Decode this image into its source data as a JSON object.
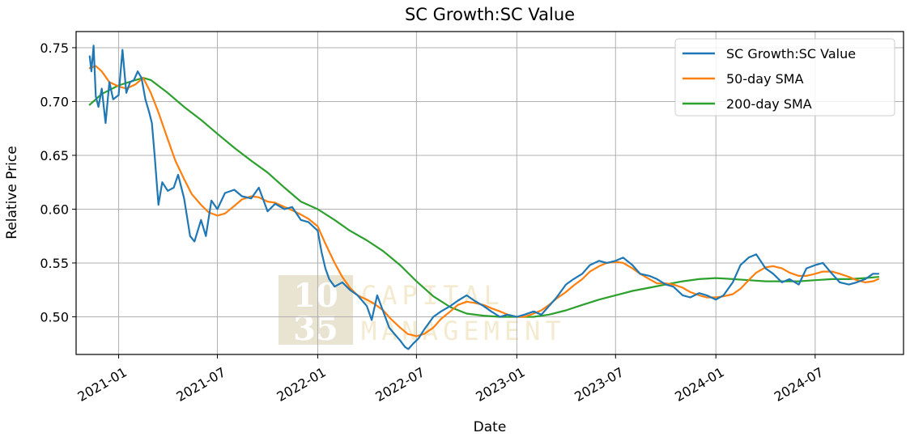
{
  "colors": {
    "price": "#1f77b4",
    "sma50": "#ff7f0e",
    "sma200": "#2ca02c",
    "grid": "#b0b0b0",
    "watermark_box": "#e9e3d2",
    "watermark_text": "#f3ead0"
  },
  "watermark": {
    "box_line1": "10",
    "box_line2": "35",
    "text_line1": "CAPITAL",
    "text_line2": "MANAGEMENT"
  },
  "chart_data": {
    "type": "line",
    "title": "SC Growth:SC Value",
    "xlabel": "Date",
    "ylabel": "Relative Price",
    "x_type": "date",
    "xlim": [
      "2020-10-15",
      "2024-12-10"
    ],
    "ylim": [
      0.465,
      0.765
    ],
    "x_ticks": [
      {
        "date": "2021-01-01",
        "label": "2021-01"
      },
      {
        "date": "2021-07-01",
        "label": "2021-07"
      },
      {
        "date": "2022-01-01",
        "label": "2022-01"
      },
      {
        "date": "2022-07-01",
        "label": "2022-07"
      },
      {
        "date": "2023-01-01",
        "label": "2023-01"
      },
      {
        "date": "2023-07-01",
        "label": "2023-07"
      },
      {
        "date": "2024-01-01",
        "label": "2024-01"
      },
      {
        "date": "2024-07-01",
        "label": "2024-07"
      }
    ],
    "y_ticks": [
      {
        "value": 0.5,
        "label": "0.50"
      },
      {
        "value": 0.55,
        "label": "0.55"
      },
      {
        "value": 0.6,
        "label": "0.60"
      },
      {
        "value": 0.65,
        "label": "0.65"
      },
      {
        "value": 0.7,
        "label": "0.70"
      },
      {
        "value": 0.75,
        "label": "0.75"
      }
    ],
    "grid": true,
    "legend_position": "top-right",
    "series": [
      {
        "name": "SC Growth:SC Value",
        "color": "#1f77b4",
        "x": [
          "2020-11-09",
          "2020-11-12",
          "2020-11-16",
          "2020-11-20",
          "2020-11-25",
          "2020-12-01",
          "2020-12-08",
          "2020-12-15",
          "2020-12-22",
          "2021-01-01",
          "2021-01-08",
          "2021-01-15",
          "2021-01-22",
          "2021-01-29",
          "2021-02-05",
          "2021-02-12",
          "2021-02-19",
          "2021-02-26",
          "2021-03-03",
          "2021-03-08",
          "2021-03-15",
          "2021-03-22",
          "2021-04-01",
          "2021-04-12",
          "2021-04-20",
          "2021-05-01",
          "2021-05-12",
          "2021-05-20",
          "2021-06-01",
          "2021-06-10",
          "2021-06-20",
          "2021-07-01",
          "2021-07-15",
          "2021-08-01",
          "2021-08-15",
          "2021-09-01",
          "2021-09-15",
          "2021-10-01",
          "2021-10-15",
          "2021-11-01",
          "2021-11-15",
          "2021-12-01",
          "2021-12-15",
          "2022-01-01",
          "2022-01-08",
          "2022-01-15",
          "2022-01-22",
          "2022-02-01",
          "2022-02-15",
          "2022-03-01",
          "2022-03-15",
          "2022-04-01",
          "2022-04-10",
          "2022-04-20",
          "2022-05-01",
          "2022-05-12",
          "2022-05-20",
          "2022-06-01",
          "2022-06-10",
          "2022-06-16",
          "2022-06-25",
          "2022-07-05",
          "2022-07-15",
          "2022-08-01",
          "2022-08-15",
          "2022-09-01",
          "2022-09-15",
          "2022-10-01",
          "2022-10-15",
          "2022-11-01",
          "2022-11-15",
          "2022-12-01",
          "2022-12-15",
          "2023-01-01",
          "2023-01-15",
          "2023-02-01",
          "2023-02-15",
          "2023-03-01",
          "2023-03-15",
          "2023-04-01",
          "2023-04-15",
          "2023-05-01",
          "2023-05-15",
          "2023-06-01",
          "2023-06-15",
          "2023-07-01",
          "2023-07-15",
          "2023-08-01",
          "2023-08-15",
          "2023-09-01",
          "2023-09-15",
          "2023-10-01",
          "2023-10-15",
          "2023-11-01",
          "2023-11-15",
          "2023-12-01",
          "2023-12-15",
          "2024-01-01",
          "2024-01-15",
          "2024-02-01",
          "2024-02-15",
          "2024-03-01",
          "2024-03-15",
          "2024-04-01",
          "2024-04-15",
          "2024-05-01",
          "2024-05-15",
          "2024-06-01",
          "2024-06-15",
          "2024-07-01",
          "2024-07-15",
          "2024-08-01",
          "2024-08-15",
          "2024-09-01",
          "2024-09-15",
          "2024-10-01",
          "2024-10-15",
          "2024-10-25"
        ],
        "y": [
          0.742,
          0.728,
          0.752,
          0.705,
          0.695,
          0.712,
          0.68,
          0.718,
          0.702,
          0.706,
          0.748,
          0.708,
          0.718,
          0.72,
          0.728,
          0.722,
          0.702,
          0.69,
          0.68,
          0.65,
          0.604,
          0.625,
          0.617,
          0.62,
          0.632,
          0.61,
          0.575,
          0.57,
          0.59,
          0.575,
          0.608,
          0.6,
          0.615,
          0.618,
          0.612,
          0.61,
          0.62,
          0.598,
          0.605,
          0.6,
          0.602,
          0.59,
          0.588,
          0.58,
          0.56,
          0.545,
          0.535,
          0.528,
          0.532,
          0.525,
          0.52,
          0.51,
          0.497,
          0.52,
          0.505,
          0.49,
          0.485,
          0.478,
          0.472,
          0.47,
          0.475,
          0.48,
          0.488,
          0.5,
          0.505,
          0.51,
          0.515,
          0.52,
          0.515,
          0.51,
          0.505,
          0.5,
          0.502,
          0.5,
          0.502,
          0.505,
          0.502,
          0.51,
          0.518,
          0.53,
          0.535,
          0.54,
          0.548,
          0.552,
          0.55,
          0.552,
          0.555,
          0.548,
          0.54,
          0.538,
          0.535,
          0.53,
          0.528,
          0.52,
          0.518,
          0.522,
          0.52,
          0.516,
          0.52,
          0.532,
          0.548,
          0.555,
          0.558,
          0.545,
          0.54,
          0.532,
          0.535,
          0.53,
          0.545,
          0.548,
          0.55,
          0.54,
          0.532,
          0.53,
          0.532,
          0.535,
          0.54,
          0.54
        ]
      },
      {
        "name": "50-day SMA",
        "color": "#ff7f0e",
        "x": [
          "2020-11-09",
          "2020-11-20",
          "2020-12-01",
          "2020-12-15",
          "2021-01-01",
          "2021-01-15",
          "2021-02-01",
          "2021-02-15",
          "2021-03-01",
          "2021-03-15",
          "2021-04-01",
          "2021-04-15",
          "2021-05-01",
          "2021-05-15",
          "2021-06-01",
          "2021-06-15",
          "2021-07-01",
          "2021-07-15",
          "2021-08-01",
          "2021-08-15",
          "2021-09-01",
          "2021-09-15",
          "2021-10-01",
          "2021-10-15",
          "2021-11-01",
          "2021-11-15",
          "2021-12-01",
          "2021-12-15",
          "2022-01-01",
          "2022-01-15",
          "2022-02-01",
          "2022-02-15",
          "2022-03-01",
          "2022-03-15",
          "2022-04-01",
          "2022-04-15",
          "2022-05-01",
          "2022-05-15",
          "2022-06-01",
          "2022-06-15",
          "2022-07-01",
          "2022-07-15",
          "2022-08-01",
          "2022-08-15",
          "2022-09-01",
          "2022-09-15",
          "2022-10-01",
          "2022-10-15",
          "2022-11-01",
          "2022-11-15",
          "2022-12-01",
          "2022-12-15",
          "2023-01-01",
          "2023-01-15",
          "2023-02-01",
          "2023-02-15",
          "2023-03-01",
          "2023-03-15",
          "2023-04-01",
          "2023-04-15",
          "2023-05-01",
          "2023-05-15",
          "2023-06-01",
          "2023-06-15",
          "2023-07-01",
          "2023-07-15",
          "2023-08-01",
          "2023-08-15",
          "2023-09-01",
          "2023-09-15",
          "2023-10-01",
          "2023-10-15",
          "2023-11-01",
          "2023-11-15",
          "2023-12-01",
          "2023-12-15",
          "2024-01-01",
          "2024-01-15",
          "2024-02-01",
          "2024-02-15",
          "2024-03-01",
          "2024-03-15",
          "2024-04-01",
          "2024-04-15",
          "2024-05-01",
          "2024-05-15",
          "2024-06-01",
          "2024-06-15",
          "2024-07-01",
          "2024-07-15",
          "2024-08-01",
          "2024-08-15",
          "2024-09-01",
          "2024-09-15",
          "2024-10-01",
          "2024-10-15",
          "2024-10-25"
        ],
        "y": [
          0.731,
          0.733,
          0.728,
          0.718,
          0.714,
          0.712,
          0.716,
          0.722,
          0.708,
          0.69,
          0.665,
          0.645,
          0.628,
          0.614,
          0.604,
          0.597,
          0.594,
          0.596,
          0.603,
          0.609,
          0.612,
          0.611,
          0.607,
          0.606,
          0.602,
          0.599,
          0.595,
          0.591,
          0.584,
          0.568,
          0.55,
          0.537,
          0.527,
          0.52,
          0.516,
          0.512,
          0.506,
          0.498,
          0.49,
          0.484,
          0.482,
          0.484,
          0.49,
          0.498,
          0.505,
          0.511,
          0.514,
          0.513,
          0.511,
          0.508,
          0.505,
          0.502,
          0.5,
          0.5,
          0.503,
          0.506,
          0.511,
          0.517,
          0.523,
          0.529,
          0.535,
          0.542,
          0.547,
          0.55,
          0.551,
          0.55,
          0.545,
          0.54,
          0.535,
          0.531,
          0.531,
          0.53,
          0.527,
          0.523,
          0.52,
          0.518,
          0.518,
          0.519,
          0.521,
          0.526,
          0.534,
          0.541,
          0.546,
          0.547,
          0.545,
          0.541,
          0.538,
          0.538,
          0.54,
          0.542,
          0.542,
          0.54,
          0.537,
          0.534,
          0.532,
          0.533,
          0.535
        ]
      },
      {
        "name": "200-day SMA",
        "color": "#2ca02c",
        "x": [
          "2020-11-09",
          "2020-12-01",
          "2021-01-01",
          "2021-02-01",
          "2021-02-15",
          "2021-03-01",
          "2021-04-01",
          "2021-05-01",
          "2021-06-01",
          "2021-07-01",
          "2021-08-01",
          "2021-09-01",
          "2021-10-01",
          "2021-11-01",
          "2021-12-01",
          "2022-01-01",
          "2022-02-01",
          "2022-03-01",
          "2022-04-01",
          "2022-05-01",
          "2022-06-01",
          "2022-07-01",
          "2022-08-01",
          "2022-09-01",
          "2022-10-01",
          "2022-11-01",
          "2022-12-01",
          "2023-01-01",
          "2023-02-01",
          "2023-03-01",
          "2023-04-01",
          "2023-05-01",
          "2023-06-01",
          "2023-07-01",
          "2023-08-01",
          "2023-09-01",
          "2023-10-01",
          "2023-11-01",
          "2023-12-01",
          "2024-01-01",
          "2024-02-01",
          "2024-03-01",
          "2024-04-01",
          "2024-05-01",
          "2024-06-01",
          "2024-07-01",
          "2024-08-01",
          "2024-09-01",
          "2024-10-01",
          "2024-10-25"
        ],
        "y": [
          0.697,
          0.707,
          0.715,
          0.72,
          0.722,
          0.72,
          0.708,
          0.695,
          0.683,
          0.67,
          0.657,
          0.645,
          0.634,
          0.62,
          0.607,
          0.6,
          0.59,
          0.58,
          0.571,
          0.561,
          0.548,
          0.533,
          0.519,
          0.509,
          0.503,
          0.501,
          0.5,
          0.5,
          0.5,
          0.502,
          0.506,
          0.511,
          0.516,
          0.52,
          0.524,
          0.527,
          0.53,
          0.533,
          0.535,
          0.536,
          0.535,
          0.534,
          0.533,
          0.533,
          0.533,
          0.534,
          0.535,
          0.535,
          0.536,
          0.537
        ]
      }
    ]
  }
}
